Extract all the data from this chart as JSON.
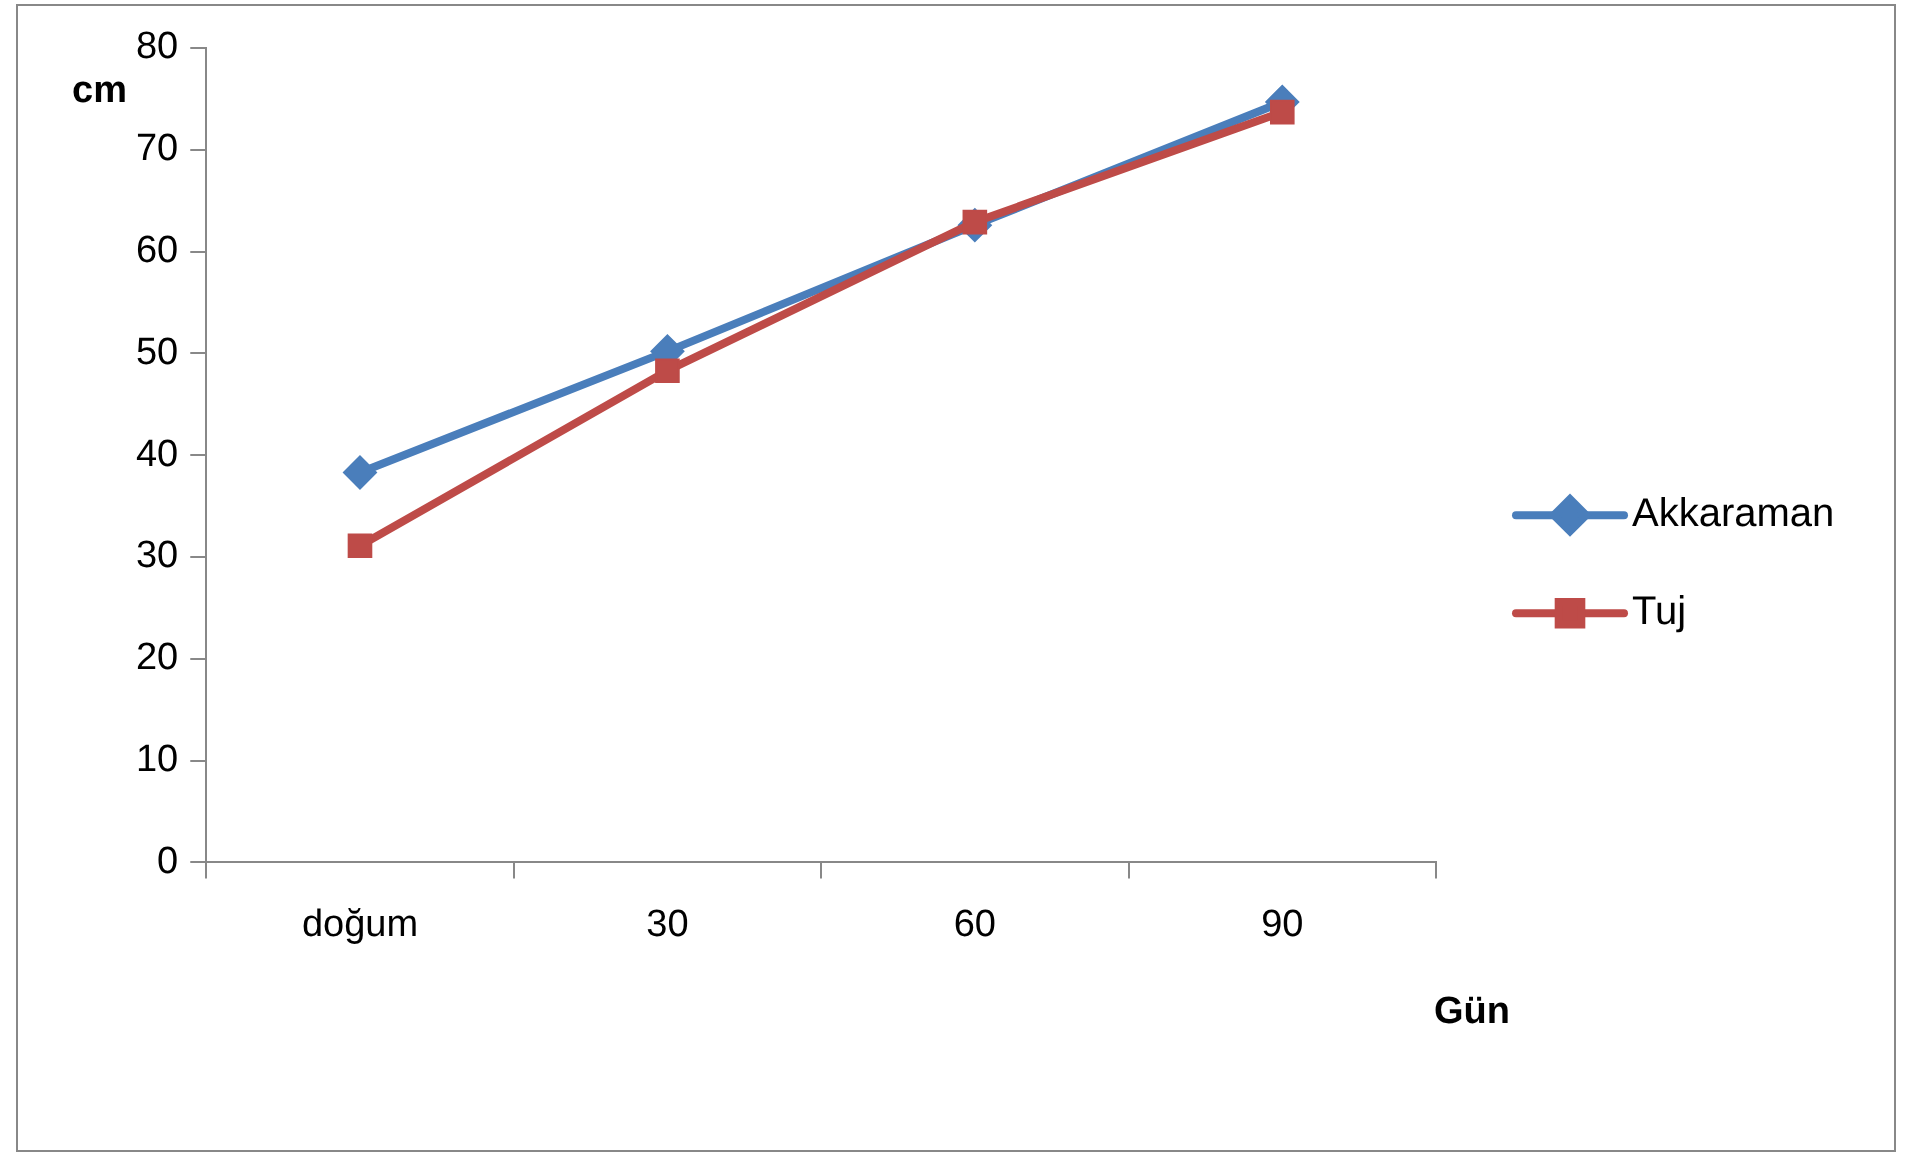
{
  "chart_data": {
    "type": "line",
    "xlabel": "Gün",
    "ylabel": "cm",
    "categories": [
      "doğum",
      "30",
      "60",
      "90"
    ],
    "series": [
      {
        "name": "Akkaraman",
        "color": "#4a7ebb",
        "marker": "diamond",
        "values": [
          38.3,
          50.2,
          62.6,
          74.7
        ]
      },
      {
        "name": "Tuj",
        "color": "#be4b48",
        "marker": "square",
        "values": [
          31.1,
          48.3,
          62.9,
          73.7
        ]
      }
    ],
    "ylim": [
      0,
      80
    ],
    "yticks": [
      0,
      10,
      20,
      30,
      40,
      50,
      60,
      70,
      80
    ],
    "grid": false,
    "legend": "right",
    "line_style": "solid"
  }
}
